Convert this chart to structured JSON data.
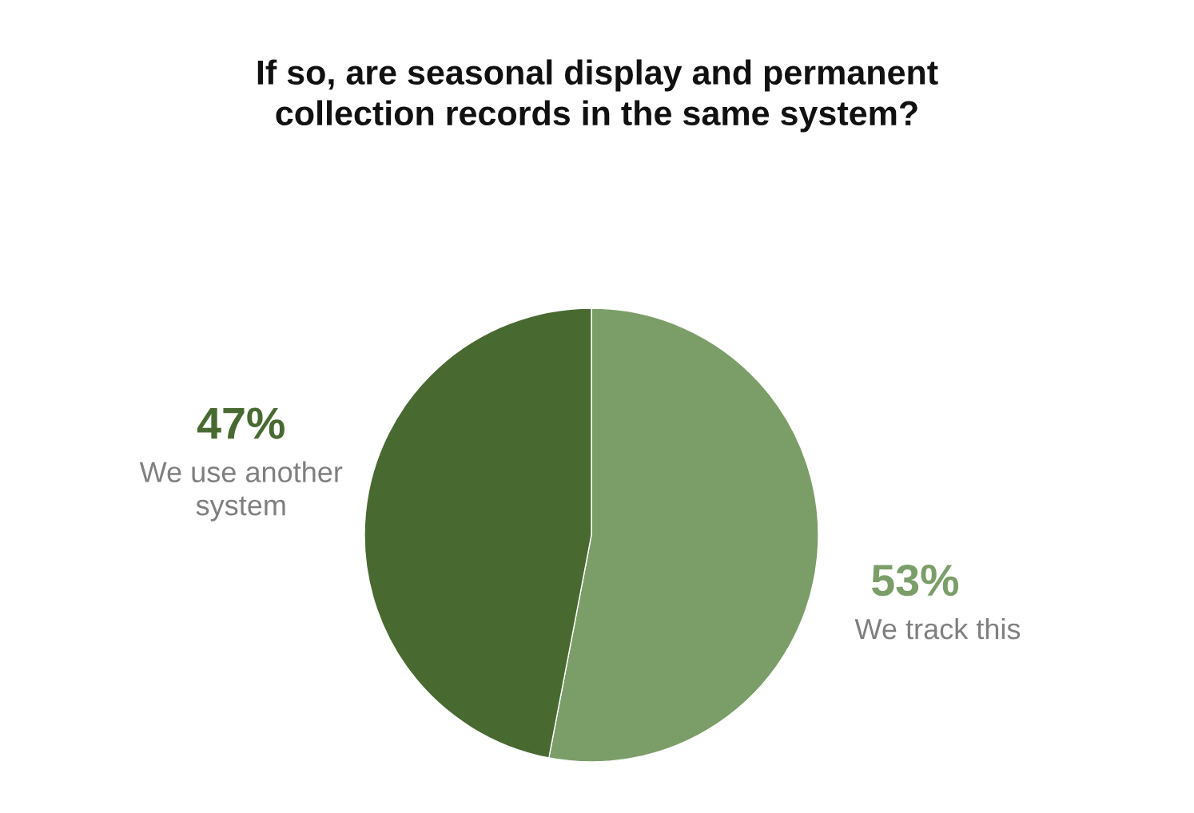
{
  "chart_data": {
    "type": "pie",
    "title": "If so, are seasonal display and permanent\ncollection records in the same system?",
    "categories": [
      "We track this",
      "We use another\nsystem"
    ],
    "values": [
      53,
      47
    ],
    "value_labels": [
      "53%",
      "47%"
    ],
    "colors": [
      "#7b9e68",
      "#486a31"
    ]
  }
}
